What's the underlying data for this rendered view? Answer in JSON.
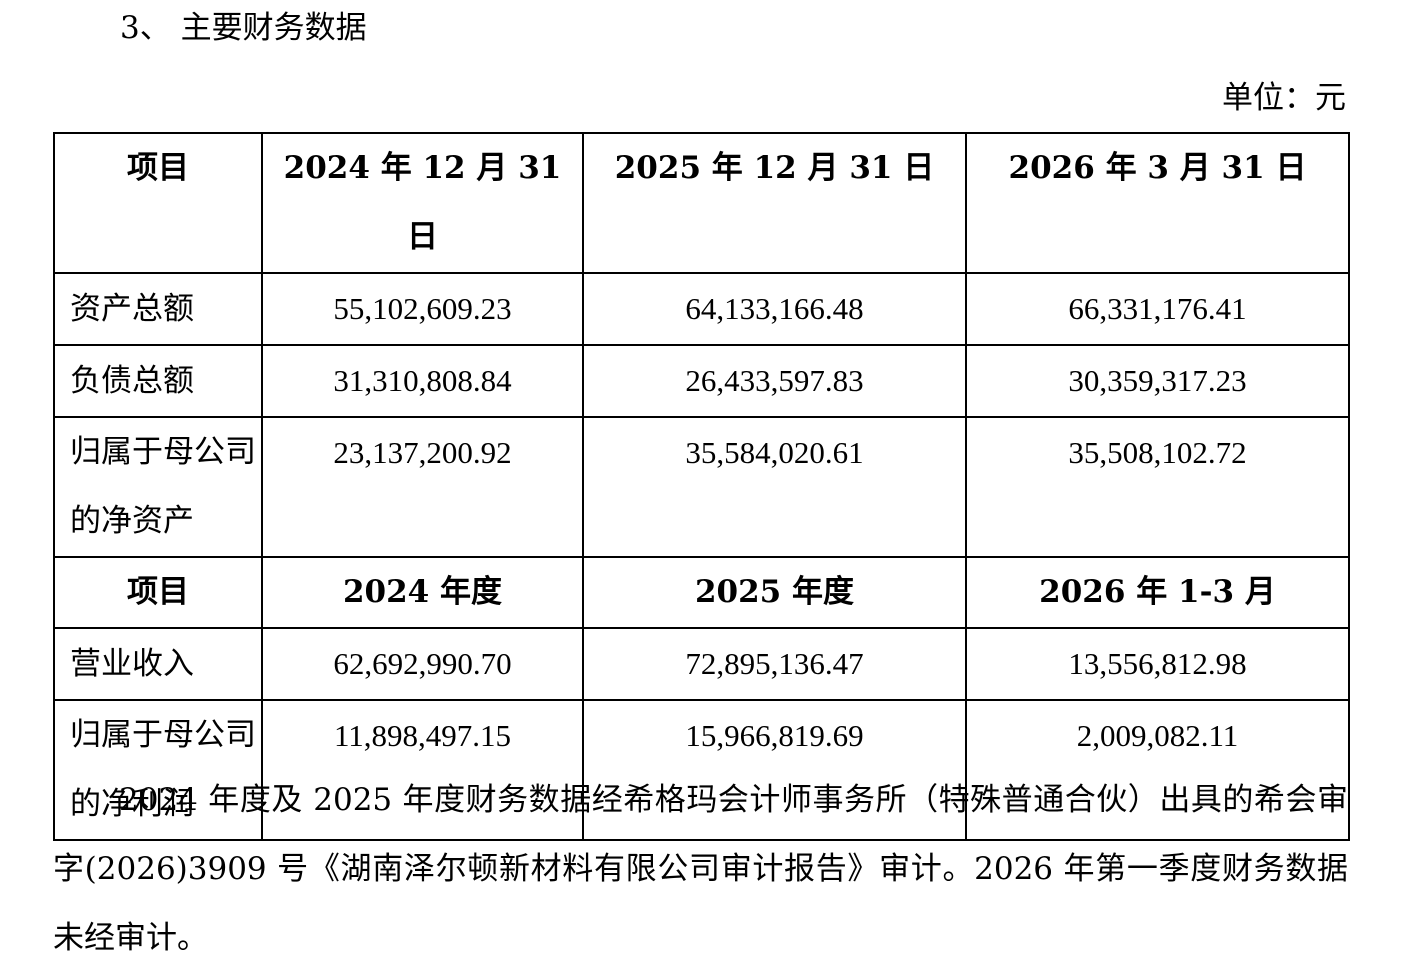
{
  "heading": "3、 主要财务数据",
  "unit": "单位：元",
  "table1": {
    "headers": [
      "项目",
      "2024 年 12 月 31 日",
      "2025 年 12 月 31 日",
      "2026  年 3 月 31 日"
    ],
    "rows": [
      {
        "label": "资产总额",
        "values": [
          "55,102,609.23",
          "64,133,166.48",
          "66,331,176.41"
        ]
      },
      {
        "label": "负债总额",
        "values": [
          "31,310,808.84",
          "26,433,597.83",
          "30,359,317.23"
        ]
      },
      {
        "label": "归属于母公司的净资产",
        "values": [
          "23,137,200.92",
          "35,584,020.61",
          "35,508,102.72"
        ]
      }
    ]
  },
  "table2": {
    "headers": [
      "项目",
      "2024 年度",
      "2025 年度",
      "2026 年 1-3 月"
    ],
    "rows": [
      {
        "label": "营业收入",
        "values": [
          "62,692,990.70",
          "72,895,136.47",
          "13,556,812.98"
        ]
      },
      {
        "label": "归属于母公司的净利润",
        "values": [
          "11,898,497.15",
          "15,966,819.69",
          "2,009,082.11"
        ]
      }
    ]
  },
  "paragraph": "2024 年度及 2025 年度财务数据经希格玛会计师事务所（特殊普通合伙）出具的希会审字(2026)3909 号《湖南泽尔顿新材料有限公司审计报告》审计。2026 年第一季度财务数据未经审计。"
}
